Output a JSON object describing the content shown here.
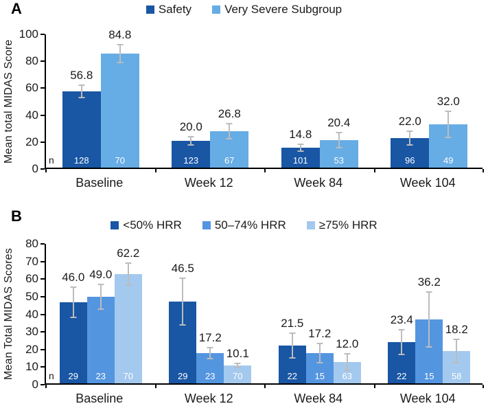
{
  "colors": {
    "dark_blue": "#1956A4",
    "light_blue_a": "#66ACE5",
    "mid_blue_b": "#5495E0",
    "pale_blue_b": "#A4C9EE",
    "error_bar": "#BCBCBC",
    "axis": "#000000",
    "bar_n_text": "#ffffff"
  },
  "chart_data": [
    {
      "type": "bar",
      "panel": "A",
      "title": "",
      "xlabel": "",
      "ylabel": "Mean total MIDAS Score",
      "ylim": [
        0,
        100
      ],
      "ytick_step": 20,
      "grid": false,
      "legend_position": "top",
      "n_label": "n",
      "categories": [
        "Baseline",
        "Week 12",
        "Week 84",
        "Week 104"
      ],
      "series": [
        {
          "name": "Safety",
          "color": "#1956A4",
          "values": [
            56.8,
            20.0,
            14.8,
            22.0
          ],
          "errors": [
            5.0,
            3.5,
            3.3,
            5.5
          ],
          "n": [
            128,
            123,
            101,
            96
          ]
        },
        {
          "name": "Very Severe Subgroup",
          "color": "#66ACE5",
          "values": [
            84.8,
            26.8,
            20.4,
            32.0
          ],
          "errors": [
            7.0,
            6.0,
            6.0,
            10.0
          ],
          "n": [
            70,
            67,
            53,
            49
          ]
        }
      ]
    },
    {
      "type": "bar",
      "panel": "B",
      "title": "",
      "xlabel": "",
      "ylabel": "Mean Total MIDAS Scores",
      "ylim": [
        0,
        80
      ],
      "ytick_step": 10,
      "grid": false,
      "legend_position": "top",
      "n_label": "n",
      "categories": [
        "Baseline",
        "Week 12",
        "Week 84",
        "Week 104"
      ],
      "series": [
        {
          "name": "<50% HRR",
          "color": "#1956A4",
          "values": [
            46.0,
            46.5,
            21.5,
            23.4
          ],
          "errors": [
            9.0,
            13.5,
            7.5,
            7.5
          ],
          "n": [
            29,
            29,
            22,
            22
          ]
        },
        {
          "name": "50–74% HRR",
          "color": "#5495E0",
          "values": [
            49.0,
            17.2,
            17.2,
            36.2
          ],
          "errors": [
            7.5,
            3.5,
            6.0,
            16.0
          ],
          "n": [
            23,
            23,
            15,
            15
          ]
        },
        {
          "name": "≥75% HRR",
          "color": "#A4C9EE",
          "values": [
            62.2,
            10.1,
            12.0,
            18.2
          ],
          "errors": [
            6.5,
            1.5,
            5.0,
            7.0
          ],
          "n": [
            70,
            70,
            63,
            58
          ]
        }
      ]
    }
  ]
}
